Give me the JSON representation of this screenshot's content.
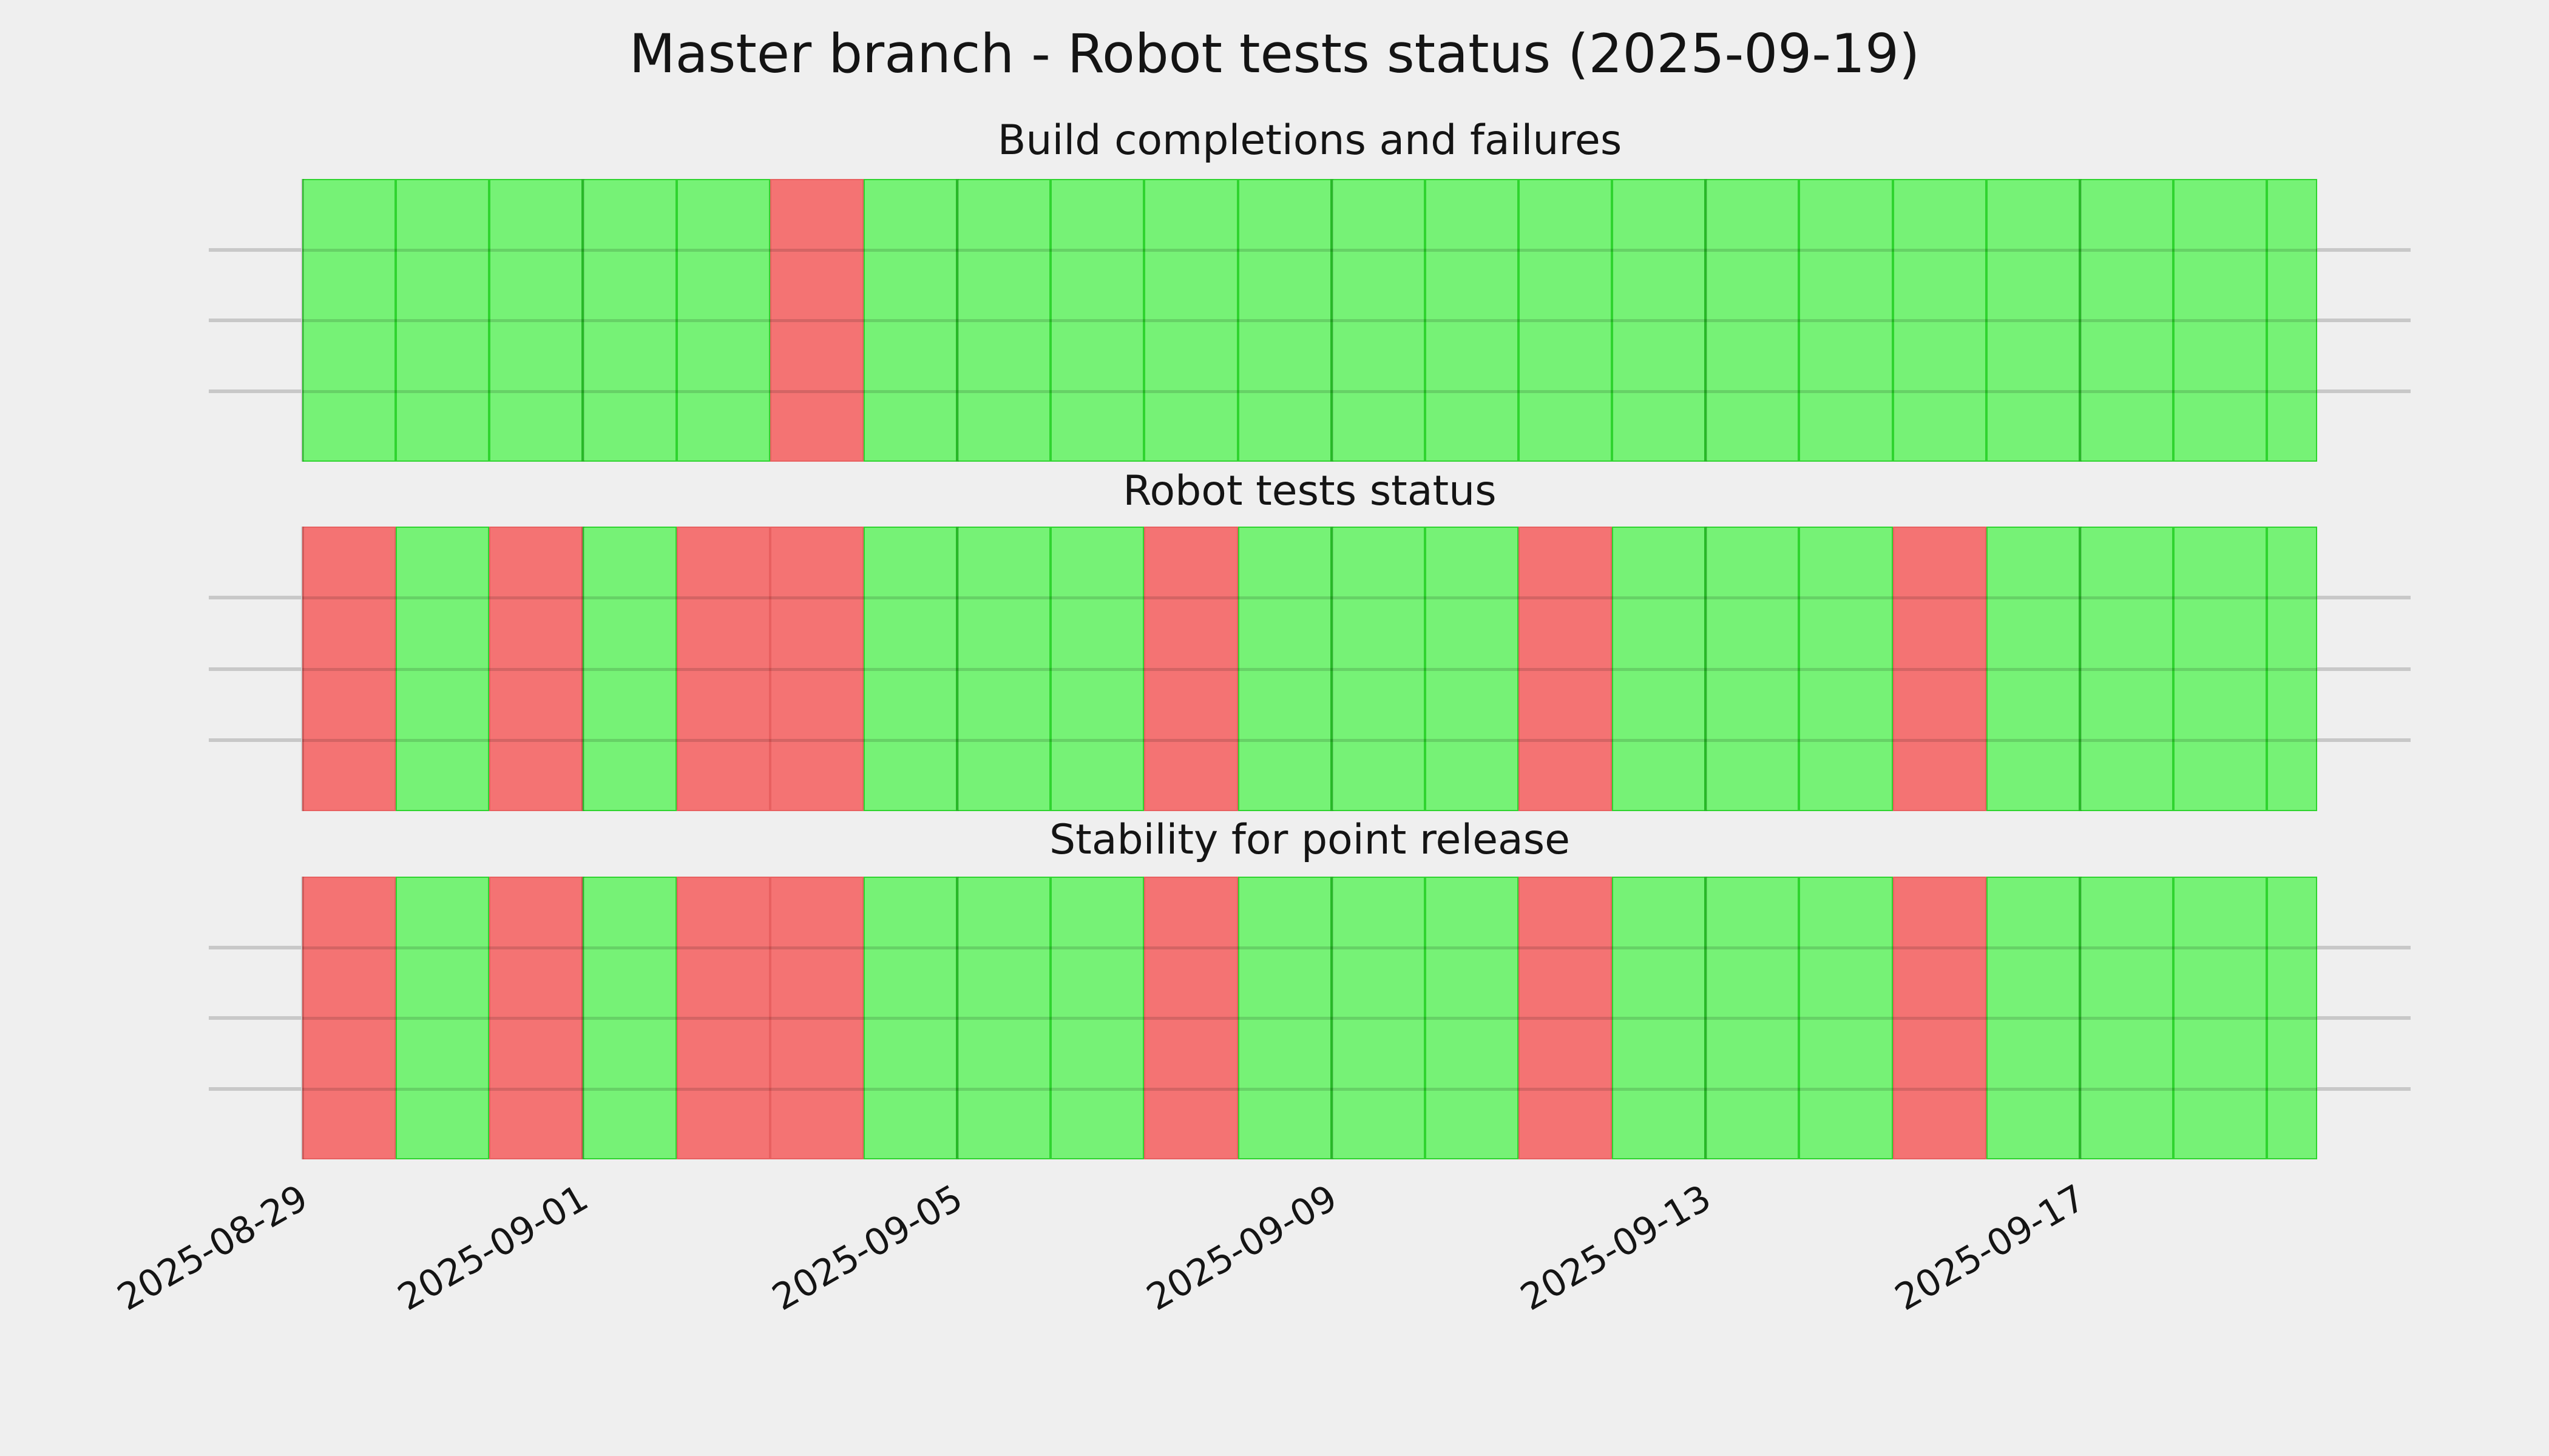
{
  "figure": {
    "title": "Master branch - Robot tests status (2025-09-19)",
    "background": "#efefef"
  },
  "colors": {
    "pass_fill": "#76f276",
    "fail_fill": "#f47373",
    "pass_edge": "#2fd42f",
    "fail_edge": "#e86060",
    "grid": "rgba(0,0,0,0.13)",
    "tick": "#c8c8c8",
    "text": "#141414"
  },
  "x_axis": {
    "tick_labels": [
      "2025-08-29",
      "2025-09-01",
      "2025-09-05",
      "2025-09-09",
      "2025-09-13",
      "2025-09-17"
    ],
    "rotation_degrees": 30
  },
  "chart_data": [
    {
      "type": "heatmap",
      "title": "Build completions and failures",
      "rows": 4,
      "last_band_fraction": 0.54,
      "x": [
        "2025-08-29",
        "2025-08-30",
        "2025-08-31",
        "2025-09-01",
        "2025-09-02",
        "2025-09-03",
        "2025-09-04",
        "2025-09-05",
        "2025-09-06",
        "2025-09-07",
        "2025-09-08",
        "2025-09-09",
        "2025-09-10",
        "2025-09-11",
        "2025-09-12",
        "2025-09-13",
        "2025-09-14",
        "2025-09-15",
        "2025-09-16",
        "2025-09-17",
        "2025-09-18",
        "2025-09-19"
      ],
      "statuses": [
        "pass",
        "pass",
        "pass",
        "pass",
        "pass",
        "fail",
        "pass",
        "pass",
        "pass",
        "pass",
        "pass",
        "pass",
        "pass",
        "pass",
        "pass",
        "pass",
        "pass",
        "pass",
        "pass",
        "pass",
        "pass",
        "pass"
      ],
      "legend": {
        "green": "pass",
        "red": "fail"
      }
    },
    {
      "type": "heatmap",
      "title": "Robot tests status",
      "rows": 4,
      "last_band_fraction": 0.54,
      "x": [
        "2025-08-29",
        "2025-08-30",
        "2025-08-31",
        "2025-09-01",
        "2025-09-02",
        "2025-09-03",
        "2025-09-04",
        "2025-09-05",
        "2025-09-06",
        "2025-09-07",
        "2025-09-08",
        "2025-09-09",
        "2025-09-10",
        "2025-09-11",
        "2025-09-12",
        "2025-09-13",
        "2025-09-14",
        "2025-09-15",
        "2025-09-16",
        "2025-09-17",
        "2025-09-18",
        "2025-09-19"
      ],
      "statuses": [
        "fail",
        "pass",
        "fail",
        "pass",
        "fail",
        "fail",
        "pass",
        "pass",
        "pass",
        "fail",
        "pass",
        "pass",
        "pass",
        "fail",
        "pass",
        "pass",
        "pass",
        "fail",
        "pass",
        "pass",
        "pass",
        "pass"
      ],
      "legend": {
        "green": "pass",
        "red": "fail"
      }
    },
    {
      "type": "heatmap",
      "title": "Stability for point release",
      "rows": 4,
      "last_band_fraction": 0.54,
      "x": [
        "2025-08-29",
        "2025-08-30",
        "2025-08-31",
        "2025-09-01",
        "2025-09-02",
        "2025-09-03",
        "2025-09-04",
        "2025-09-05",
        "2025-09-06",
        "2025-09-07",
        "2025-09-08",
        "2025-09-09",
        "2025-09-10",
        "2025-09-11",
        "2025-09-12",
        "2025-09-13",
        "2025-09-14",
        "2025-09-15",
        "2025-09-16",
        "2025-09-17",
        "2025-09-18",
        "2025-09-19"
      ],
      "statuses": [
        "fail",
        "pass",
        "fail",
        "pass",
        "fail",
        "fail",
        "pass",
        "pass",
        "pass",
        "fail",
        "pass",
        "pass",
        "pass",
        "fail",
        "pass",
        "pass",
        "pass",
        "fail",
        "pass",
        "pass",
        "pass",
        "pass"
      ],
      "legend": {
        "green": "pass",
        "red": "fail"
      }
    }
  ]
}
